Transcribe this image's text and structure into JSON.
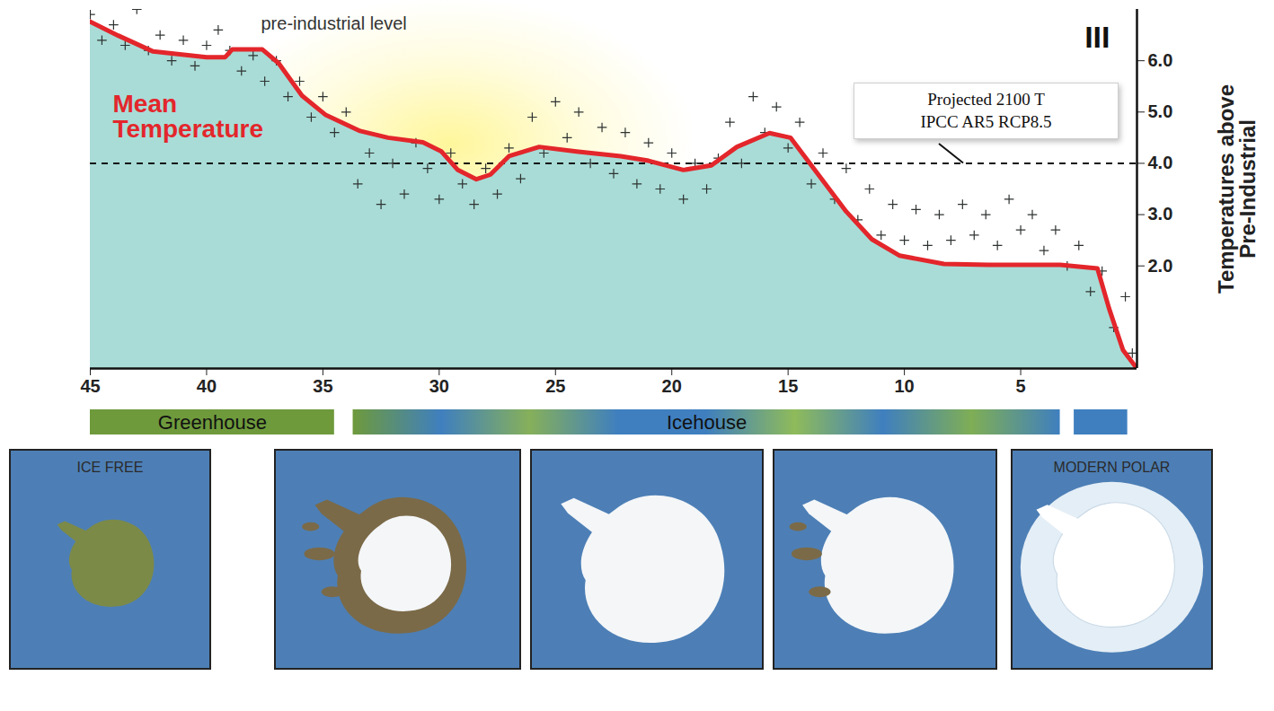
{
  "chart_data": {
    "type": "line",
    "annotations": [
      "pre-industrial level",
      "III"
    ],
    "y_label": "Temperatures above\nPre-Industrial",
    "xlim": [
      45,
      0
    ],
    "xticks": [
      45,
      40,
      35,
      30,
      25,
      20,
      15,
      10,
      5
    ],
    "ylim": [
      0,
      7
    ],
    "yticks": [
      2,
      3,
      4,
      5,
      6
    ],
    "grid": false,
    "reference_line": {
      "value": 4,
      "label": "Projected 2100 T\nIPCC AR5 RCP8.5",
      "line_style": "dashed"
    },
    "series": [
      {
        "name": "Mean Temperature",
        "type": "line",
        "color": "#e3262b",
        "x": [
          45,
          43.8,
          42.3,
          40,
          39.2,
          38.9,
          37.6,
          36.9,
          35.9,
          34.9,
          33.4,
          32.2,
          30.7,
          29.9,
          29.2,
          28.4,
          27.8,
          27.0,
          25.7,
          24.1,
          22.2,
          21.0,
          19.5,
          18.3,
          17.2,
          15.8,
          14.9,
          13.7,
          12.5,
          11.4,
          10.2,
          8.3,
          6.4,
          3.3,
          1.7,
          1.2,
          0.6,
          0
        ],
        "values": [
          6.76,
          6.49,
          6.18,
          6.07,
          6.07,
          6.22,
          6.22,
          5.95,
          5.32,
          4.95,
          4.63,
          4.5,
          4.41,
          4.23,
          3.87,
          3.69,
          3.78,
          4.14,
          4.32,
          4.23,
          4.14,
          4.05,
          3.87,
          3.96,
          4.32,
          4.59,
          4.5,
          3.78,
          3.06,
          2.52,
          2.2,
          2.04,
          2.02,
          2.02,
          1.95,
          1.17,
          0.36,
          0
        ]
      },
      {
        "type": "scatter",
        "marker": "plus",
        "color": "#2e3331",
        "x": [
          45,
          44.5,
          44,
          43.5,
          43,
          42.5,
          42,
          41.5,
          41,
          40.5,
          40,
          39.5,
          39,
          38.5,
          38,
          37.5,
          37,
          36.5,
          36,
          35.5,
          35,
          34.5,
          34,
          33.5,
          33,
          32.5,
          32,
          31.5,
          31,
          30.5,
          30,
          29.5,
          29,
          28.5,
          28,
          27.5,
          27,
          26.5,
          26,
          25.5,
          25,
          24.5,
          24,
          23.5,
          23,
          22.5,
          22,
          21.5,
          21,
          20.5,
          20,
          19.5,
          19,
          18.5,
          18,
          17.5,
          17,
          16.5,
          16,
          15.5,
          15,
          14.5,
          14,
          13.5,
          13,
          12.5,
          12,
          11.5,
          11,
          10.5,
          10,
          9.5,
          9,
          8.5,
          8,
          7.5,
          7,
          6.5,
          6,
          5.5,
          5,
          4.5,
          4,
          3.5,
          3,
          2.5,
          2,
          1.5,
          1,
          0.5,
          0.2
        ],
        "values": [
          6.9,
          6.4,
          6.7,
          6.3,
          7.0,
          6.2,
          6.5,
          6.0,
          6.4,
          5.9,
          6.3,
          6.6,
          6.2,
          5.8,
          6.1,
          5.6,
          6.0,
          5.3,
          5.6,
          4.9,
          5.3,
          4.6,
          5.0,
          3.6,
          4.2,
          3.2,
          4.0,
          3.4,
          4.4,
          3.9,
          3.3,
          4.2,
          3.6,
          3.2,
          3.9,
          3.4,
          4.3,
          3.7,
          4.9,
          4.2,
          5.2,
          4.5,
          5.0,
          4.0,
          4.7,
          3.8,
          4.6,
          3.6,
          4.4,
          3.5,
          4.2,
          3.3,
          4.0,
          3.5,
          4.1,
          4.8,
          4.0,
          5.3,
          4.6,
          5.1,
          4.3,
          4.8,
          3.6,
          4.2,
          3.3,
          3.9,
          2.9,
          3.5,
          2.6,
          3.2,
          2.5,
          3.1,
          2.4,
          3.0,
          2.5,
          3.2,
          2.6,
          3.0,
          2.4,
          3.3,
          2.7,
          3.0,
          2.3,
          2.7,
          2.0,
          2.4,
          1.5,
          1.9,
          0.8,
          1.4,
          0.3
        ]
      }
    ],
    "periods": [
      {
        "label": "Greenhouse",
        "start": 45,
        "end": 34.5,
        "color": "#6e9a3c"
      },
      {
        "label": "Icehouse",
        "start": 33.7,
        "end": 3.3,
        "colors": [
          "#6e9a3c",
          "#3f7fbf",
          "#86b05a",
          "#3f7fbf",
          "#3f7fbf",
          "#8fbb5a",
          "#3f7fbf",
          "#7fae55",
          "#3f7fbf"
        ]
      },
      {
        "start": 2.7,
        "end": 0.4,
        "color": "#3f7fbf"
      }
    ],
    "panels": [
      "ICE FREE",
      null,
      null,
      null,
      "MODERN POLAR"
    ]
  }
}
